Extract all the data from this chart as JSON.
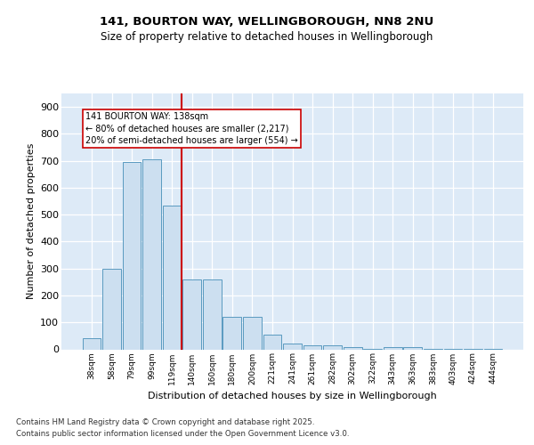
{
  "title_line1": "141, BOURTON WAY, WELLINGBOROUGH, NN8 2NU",
  "title_line2": "Size of property relative to detached houses in Wellingborough",
  "xlabel": "Distribution of detached houses by size in Wellingborough",
  "ylabel": "Number of detached properties",
  "categories": [
    "38sqm",
    "58sqm",
    "79sqm",
    "99sqm",
    "119sqm",
    "140sqm",
    "160sqm",
    "180sqm",
    "200sqm",
    "221sqm",
    "241sqm",
    "261sqm",
    "282sqm",
    "302sqm",
    "322sqm",
    "343sqm",
    "363sqm",
    "383sqm",
    "403sqm",
    "424sqm",
    "444sqm"
  ],
  "values": [
    42,
    300,
    695,
    705,
    535,
    260,
    260,
    120,
    120,
    55,
    20,
    15,
    15,
    8,
    3,
    8,
    8,
    3,
    3,
    3,
    2
  ],
  "bar_color": "#ccdff0",
  "bar_edge_color": "#5a9ac0",
  "vline_x": 4.5,
  "vline_color": "#cc0000",
  "ann_line1": "141 BOURTON WAY: 138sqm",
  "ann_line2": "← 80% of detached houses are smaller (2,217)",
  "ann_line3": "20% of semi-detached houses are larger (554) →",
  "ann_border_color": "#cc0000",
  "bg_color": "#ddeaf7",
  "grid_color": "#ffffff",
  "footer_line1": "Contains HM Land Registry data © Crown copyright and database right 2025.",
  "footer_line2": "Contains public sector information licensed under the Open Government Licence v3.0.",
  "ylim": [
    0,
    950
  ],
  "yticks": [
    0,
    100,
    200,
    300,
    400,
    500,
    600,
    700,
    800,
    900
  ]
}
